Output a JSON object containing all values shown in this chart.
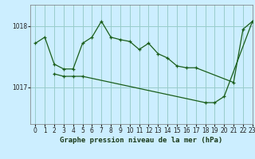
{
  "title": "Graphe pression niveau de la mer (hPa)",
  "bg_color": "#cceeff",
  "grid_color": "#99cccc",
  "line_color": "#1a5e1a",
  "xlim": [
    -0.5,
    23
  ],
  "ylim": [
    1016.4,
    1018.35
  ],
  "yticks": [
    1017,
    1018
  ],
  "xticks": [
    0,
    1,
    2,
    3,
    4,
    5,
    6,
    7,
    8,
    9,
    10,
    11,
    12,
    13,
    14,
    15,
    16,
    17,
    18,
    19,
    20,
    21,
    22,
    23
  ],
  "series1": [
    [
      0,
      1017.72
    ],
    [
      1,
      1017.82
    ],
    [
      2,
      1017.38
    ],
    [
      3,
      1017.3
    ],
    [
      4,
      1017.3
    ],
    [
      5,
      1017.72
    ],
    [
      6,
      1017.82
    ],
    [
      7,
      1018.08
    ],
    [
      8,
      1017.82
    ],
    [
      9,
      1017.78
    ],
    [
      10,
      1017.75
    ],
    [
      11,
      1017.62
    ],
    [
      12,
      1017.72
    ],
    [
      13,
      1017.55
    ],
    [
      14,
      1017.48
    ],
    [
      15,
      1017.35
    ],
    [
      16,
      1017.32
    ],
    [
      17,
      1017.32
    ],
    [
      21,
      1017.08
    ],
    [
      22,
      1017.95
    ],
    [
      23,
      1018.08
    ]
  ],
  "series2": [
    [
      2,
      1017.22
    ],
    [
      3,
      1017.18
    ],
    [
      4,
      1017.18
    ],
    [
      5,
      1017.18
    ],
    [
      18,
      1016.75
    ],
    [
      19,
      1016.75
    ],
    [
      20,
      1016.85
    ],
    [
      23,
      1018.08
    ]
  ]
}
